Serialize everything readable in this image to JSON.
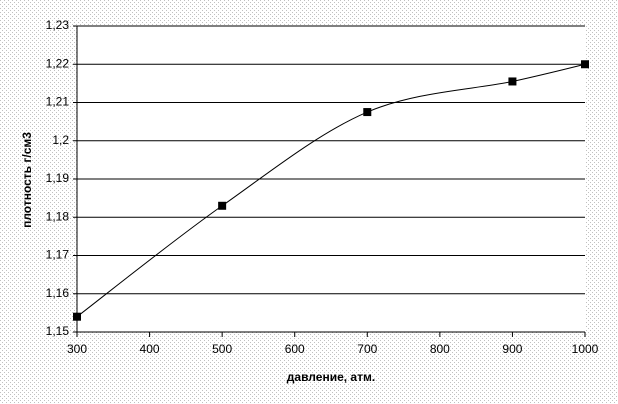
{
  "chart_data": {
    "type": "line",
    "x_label": "давление, атм.",
    "y_label": "плотность г/см3",
    "x": [
      300,
      500,
      700,
      900,
      1000
    ],
    "values": [
      1.154,
      1.183,
      1.2075,
      1.2155,
      1.22
    ],
    "color": "#000000",
    "xlim": [
      300,
      1000
    ],
    "xticks": [
      300,
      400,
      500,
      600,
      700,
      800,
      900,
      1000
    ],
    "ylim": [
      1.15,
      1.23
    ],
    "yticks": [
      {
        "value": 1.15,
        "label": "1,15"
      },
      {
        "value": 1.16,
        "label": "1,16"
      },
      {
        "value": 1.17,
        "label": "1,17"
      },
      {
        "value": 1.18,
        "label": "1,18"
      },
      {
        "value": 1.19,
        "label": "1,19"
      },
      {
        "value": 1.2,
        "label": "1,2"
      },
      {
        "value": 1.21,
        "label": "1,21"
      },
      {
        "value": 1.22,
        "label": "1,22"
      },
      {
        "value": 1.23,
        "label": "1,23"
      }
    ],
    "grid": true,
    "smooth": true
  }
}
